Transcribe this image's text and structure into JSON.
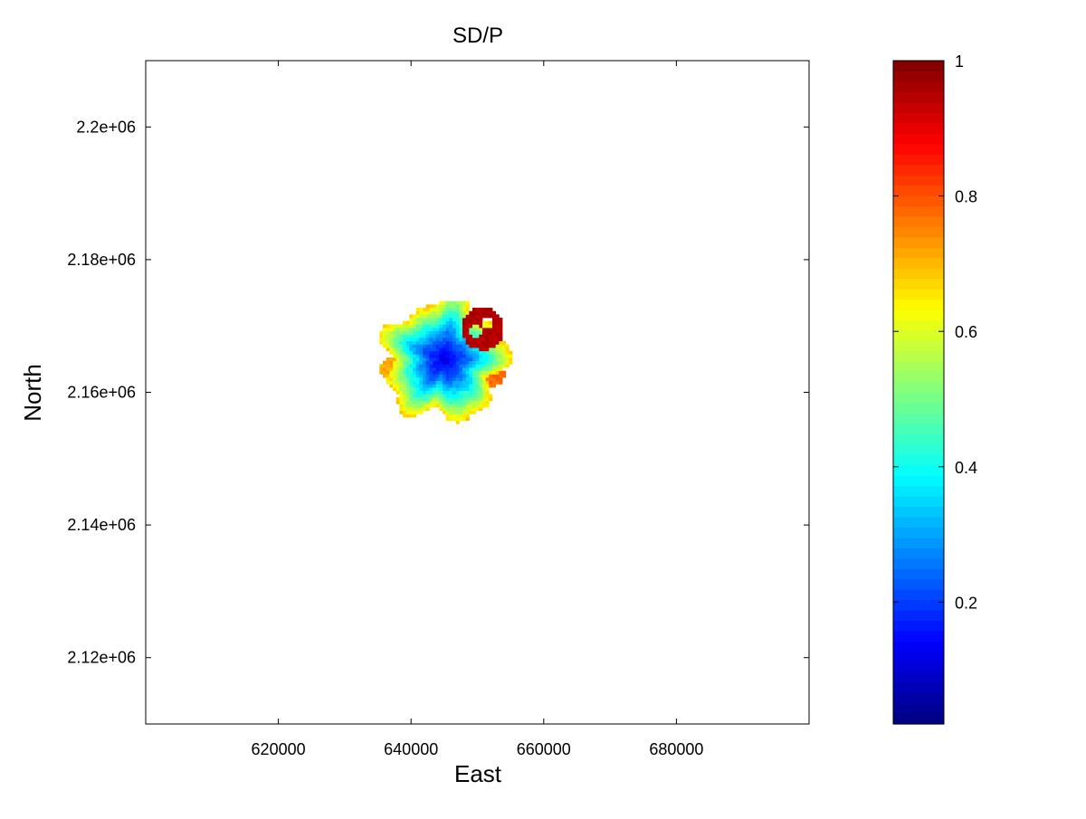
{
  "chart_data": {
    "type": "heatmap",
    "title": "SD/P",
    "xlabel": "East",
    "ylabel": "North",
    "xlim": [
      600000,
      700000
    ],
    "ylim": [
      2110000,
      2210000
    ],
    "xticks": [
      620000,
      640000,
      660000,
      680000
    ],
    "xtick_labels": [
      "620000",
      "640000",
      "660000",
      "680000"
    ],
    "yticks": [
      2120000,
      2140000,
      2160000,
      2180000,
      2200000
    ],
    "ytick_labels": [
      "2.12e+06",
      "2.14e+06",
      "2.16e+06",
      "2.18e+06",
      "2.2e+06"
    ],
    "colorbar": {
      "colormap": "jet",
      "clim": [
        0.02,
        1.0
      ],
      "ticks": [
        0.2,
        0.4,
        0.6,
        0.8,
        1.0
      ],
      "tick_labels": [
        "0.2",
        "0.4",
        "0.6",
        "0.8",
        "1"
      ]
    },
    "field": {
      "cell_size": 500,
      "main_blob": {
        "center": [
          645000,
          2165000
        ],
        "radius": 11500,
        "center_value": 0.12,
        "edge_value": 0.68
      },
      "hotspot": {
        "center": [
          650800,
          2169600
        ],
        "radius": 3200,
        "value": 0.97,
        "gaps": [
          [
            649800,
            2169200
          ],
          [
            651600,
            2170400
          ]
        ]
      },
      "spikes": [
        {
          "x": 638200,
          "y": 2162000,
          "value": 0.62
        },
        {
          "x": 652300,
          "y": 2162700,
          "value": 0.78
        },
        {
          "x": 637000,
          "y": 2163500,
          "value": 0.72
        },
        {
          "x": 645800,
          "y": 2158400,
          "value": 0.76
        }
      ]
    },
    "grid": false
  }
}
